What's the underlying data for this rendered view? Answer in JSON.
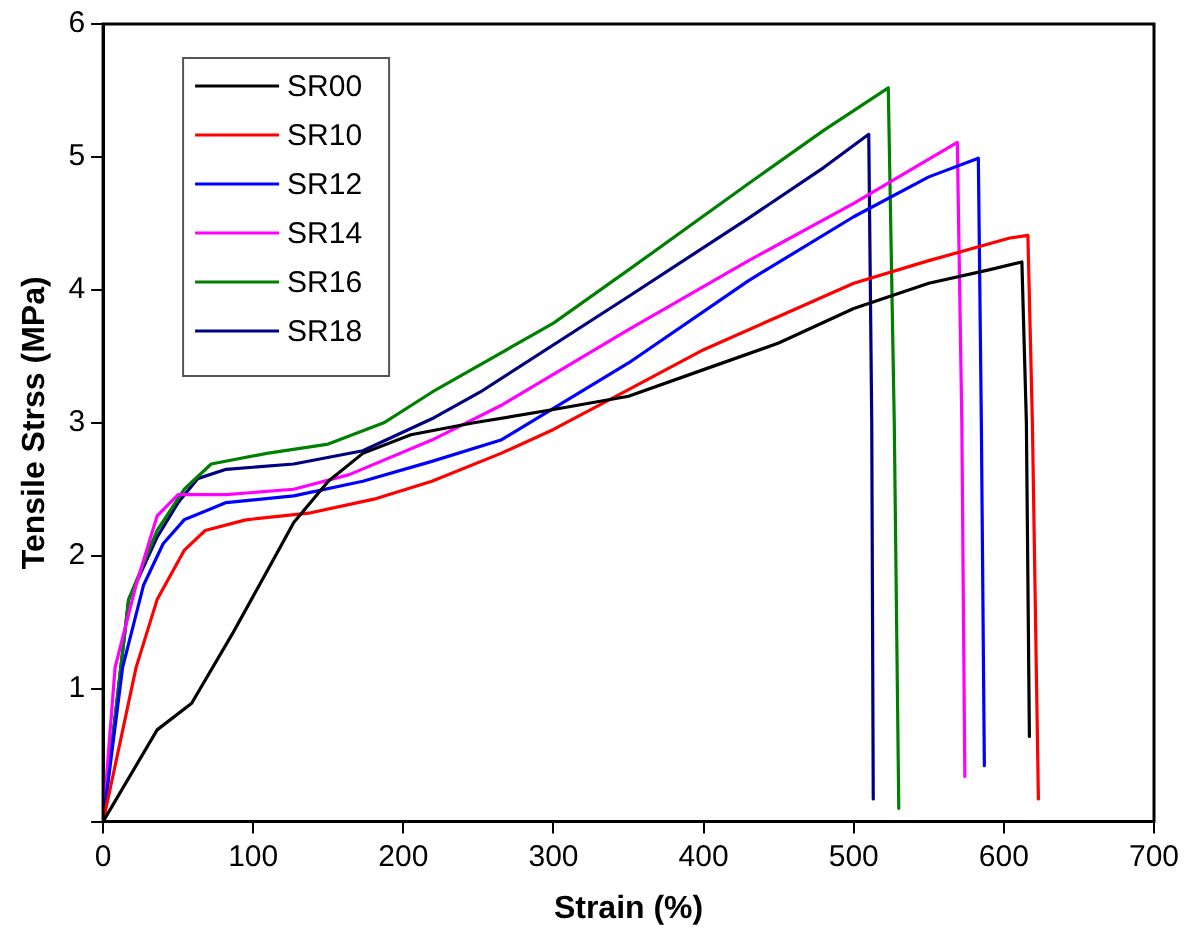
{
  "chart_data": {
    "type": "line",
    "xlabel": "Strain (%)",
    "ylabel": "Tensile Strss (MPa)",
    "xlim": [
      0,
      700
    ],
    "xticks": [
      0,
      100,
      200,
      300,
      400,
      500,
      600,
      700
    ],
    "ylim": [
      0,
      6
    ],
    "yticks": [
      {
        "value": 0,
        "label": null
      },
      1,
      2,
      3,
      4,
      5,
      6
    ],
    "grid": false,
    "legend": "top left",
    "marker": "none",
    "line_style": "solid",
    "series": [
      {
        "name": "SR00",
        "color": "#000000",
        "x": [
          0,
          36,
          59,
          86,
          109,
          127,
          150,
          173,
          205,
          247,
          300,
          350,
          400,
          450,
          500,
          550,
          590,
          612,
          615,
          617
        ],
        "values": [
          0,
          0.69,
          0.89,
          1.41,
          1.88,
          2.25,
          2.56,
          2.77,
          2.91,
          3.0,
          3.1,
          3.2,
          3.4,
          3.6,
          3.86,
          4.05,
          4.15,
          4.21,
          3,
          0.64
        ]
      },
      {
        "name": "SR10",
        "color": "#ff0000",
        "x": [
          0,
          8,
          22,
          36,
          54,
          68,
          95,
          137,
          182,
          219,
          265,
          300,
          350,
          400,
          450,
          500,
          550,
          604,
          616,
          619,
          623
        ],
        "values": [
          0,
          0.42,
          1.16,
          1.67,
          2.04,
          2.19,
          2.27,
          2.32,
          2.43,
          2.56,
          2.77,
          2.95,
          3.25,
          3.55,
          3.8,
          4.05,
          4.22,
          4.39,
          4.41,
          3,
          0.17
        ]
      },
      {
        "name": "SR12",
        "color": "#0000ff",
        "x": [
          0,
          13,
          27,
          40,
          54,
          82,
          127,
          173,
          219,
          265,
          350,
          430,
          500,
          550,
          583,
          585,
          587
        ],
        "values": [
          0,
          1.16,
          1.78,
          2.09,
          2.27,
          2.4,
          2.45,
          2.56,
          2.71,
          2.87,
          3.45,
          4.07,
          4.55,
          4.85,
          4.99,
          3,
          0.42
        ]
      },
      {
        "name": "SR14",
        "color": "#ff00ff",
        "x": [
          0,
          8,
          22,
          36,
          50,
          82,
          127,
          164,
          219,
          265,
          350,
          430,
          500,
          569,
          572,
          574
        ],
        "values": [
          0,
          1.16,
          1.78,
          2.3,
          2.46,
          2.46,
          2.5,
          2.61,
          2.87,
          3.13,
          3.7,
          4.22,
          4.65,
          5.11,
          3,
          0.34
        ]
      },
      {
        "name": "SR16",
        "color": "#008000",
        "x": [
          0,
          17,
          36,
          54,
          72,
          109,
          150,
          187,
          219,
          300,
          350,
          430,
          480,
          523,
          527,
          530
        ],
        "values": [
          0,
          1.67,
          2.19,
          2.5,
          2.69,
          2.77,
          2.84,
          3.0,
          3.23,
          3.75,
          4.15,
          4.8,
          5.2,
          5.52,
          3,
          0.1
        ]
      },
      {
        "name": "SR18",
        "color": "#000080",
        "x": [
          0,
          17,
          36,
          50,
          63,
          82,
          127,
          173,
          219,
          251,
          350,
          430,
          480,
          510,
          512,
          513
        ],
        "values": [
          0,
          1.67,
          2.14,
          2.4,
          2.58,
          2.65,
          2.69,
          2.79,
          3.03,
          3.23,
          3.95,
          4.54,
          4.92,
          5.17,
          3,
          0.17
        ]
      }
    ]
  }
}
